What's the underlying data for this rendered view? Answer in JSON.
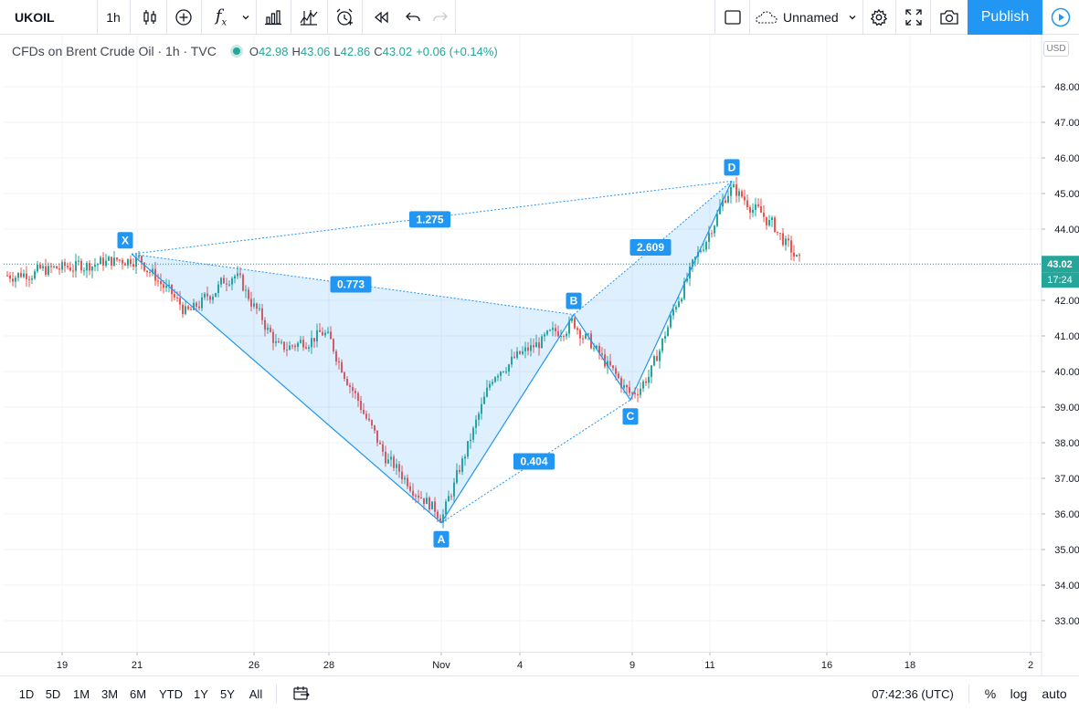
{
  "toolbar": {
    "symbol": "UKOIL",
    "interval": "1h",
    "layout_name": "Unnamed",
    "publish_label": "Publish"
  },
  "legend": {
    "title": "CFDs on Brent Crude Oil · 1h · TVC",
    "open_label": "O",
    "open": "42.98",
    "high_label": "H",
    "high": "43.06",
    "low_label": "L",
    "low": "42.86",
    "close_label": "C",
    "close": "43.02",
    "change": "+0.06 (+0.14%)"
  },
  "price_axis": {
    "currency": "USD",
    "ticks": [
      "48.00",
      "47.00",
      "46.00",
      "45.00",
      "44.00",
      "43.00",
      "42.00",
      "41.00",
      "40.00",
      "39.00",
      "38.00",
      "37.00",
      "36.00",
      "35.00",
      "34.00",
      "33.00"
    ],
    "last_price": "43.02",
    "countdown": "17:24"
  },
  "time_axis": {
    "ticks": [
      "19",
      "21",
      "26",
      "28",
      "Nov",
      "4",
      "9",
      "11",
      "16",
      "18",
      "2"
    ]
  },
  "bottombar": {
    "ranges": [
      "1D",
      "5D",
      "1M",
      "3M",
      "6M",
      "YTD",
      "1Y",
      "5Y",
      "All"
    ],
    "clock": "07:42:36 (UTC)",
    "percent_label": "%",
    "log_label": "log",
    "auto_label": "auto"
  },
  "chart_data": {
    "type": "candlestick",
    "symbol": "UKOIL",
    "interval": "1h",
    "ylim": [
      32.5,
      49.0
    ],
    "currency": "USD",
    "key_prices": [
      {
        "x": "21",
        "close": 43.1
      },
      {
        "x": "26",
        "close": 41.0
      },
      {
        "x": "28",
        "close": 40.8
      },
      {
        "x": "Nov",
        "close": 36.2
      },
      {
        "x": "4",
        "close": 40.3
      },
      {
        "x": "9",
        "close": 39.5
      },
      {
        "x": "11",
        "close": 44.6
      },
      {
        "x": "last",
        "close": 43.02
      }
    ],
    "last_price": 43.02,
    "harmonic_pattern": {
      "points": [
        {
          "label": "X",
          "price": 43.3
        },
        {
          "label": "A",
          "price": 35.75
        },
        {
          "label": "B",
          "price": 41.6
        },
        {
          "label": "C",
          "price": 39.2
        },
        {
          "label": "D",
          "price": 45.35
        }
      ],
      "ratios": [
        "1.275",
        "0.773",
        "2.609",
        "0.404"
      ]
    },
    "colors": {
      "up": "#26a69a",
      "down": "#ef5350",
      "pattern": "#2196f3",
      "pattern_fill": "rgba(33,150,243,0.15)"
    }
  }
}
